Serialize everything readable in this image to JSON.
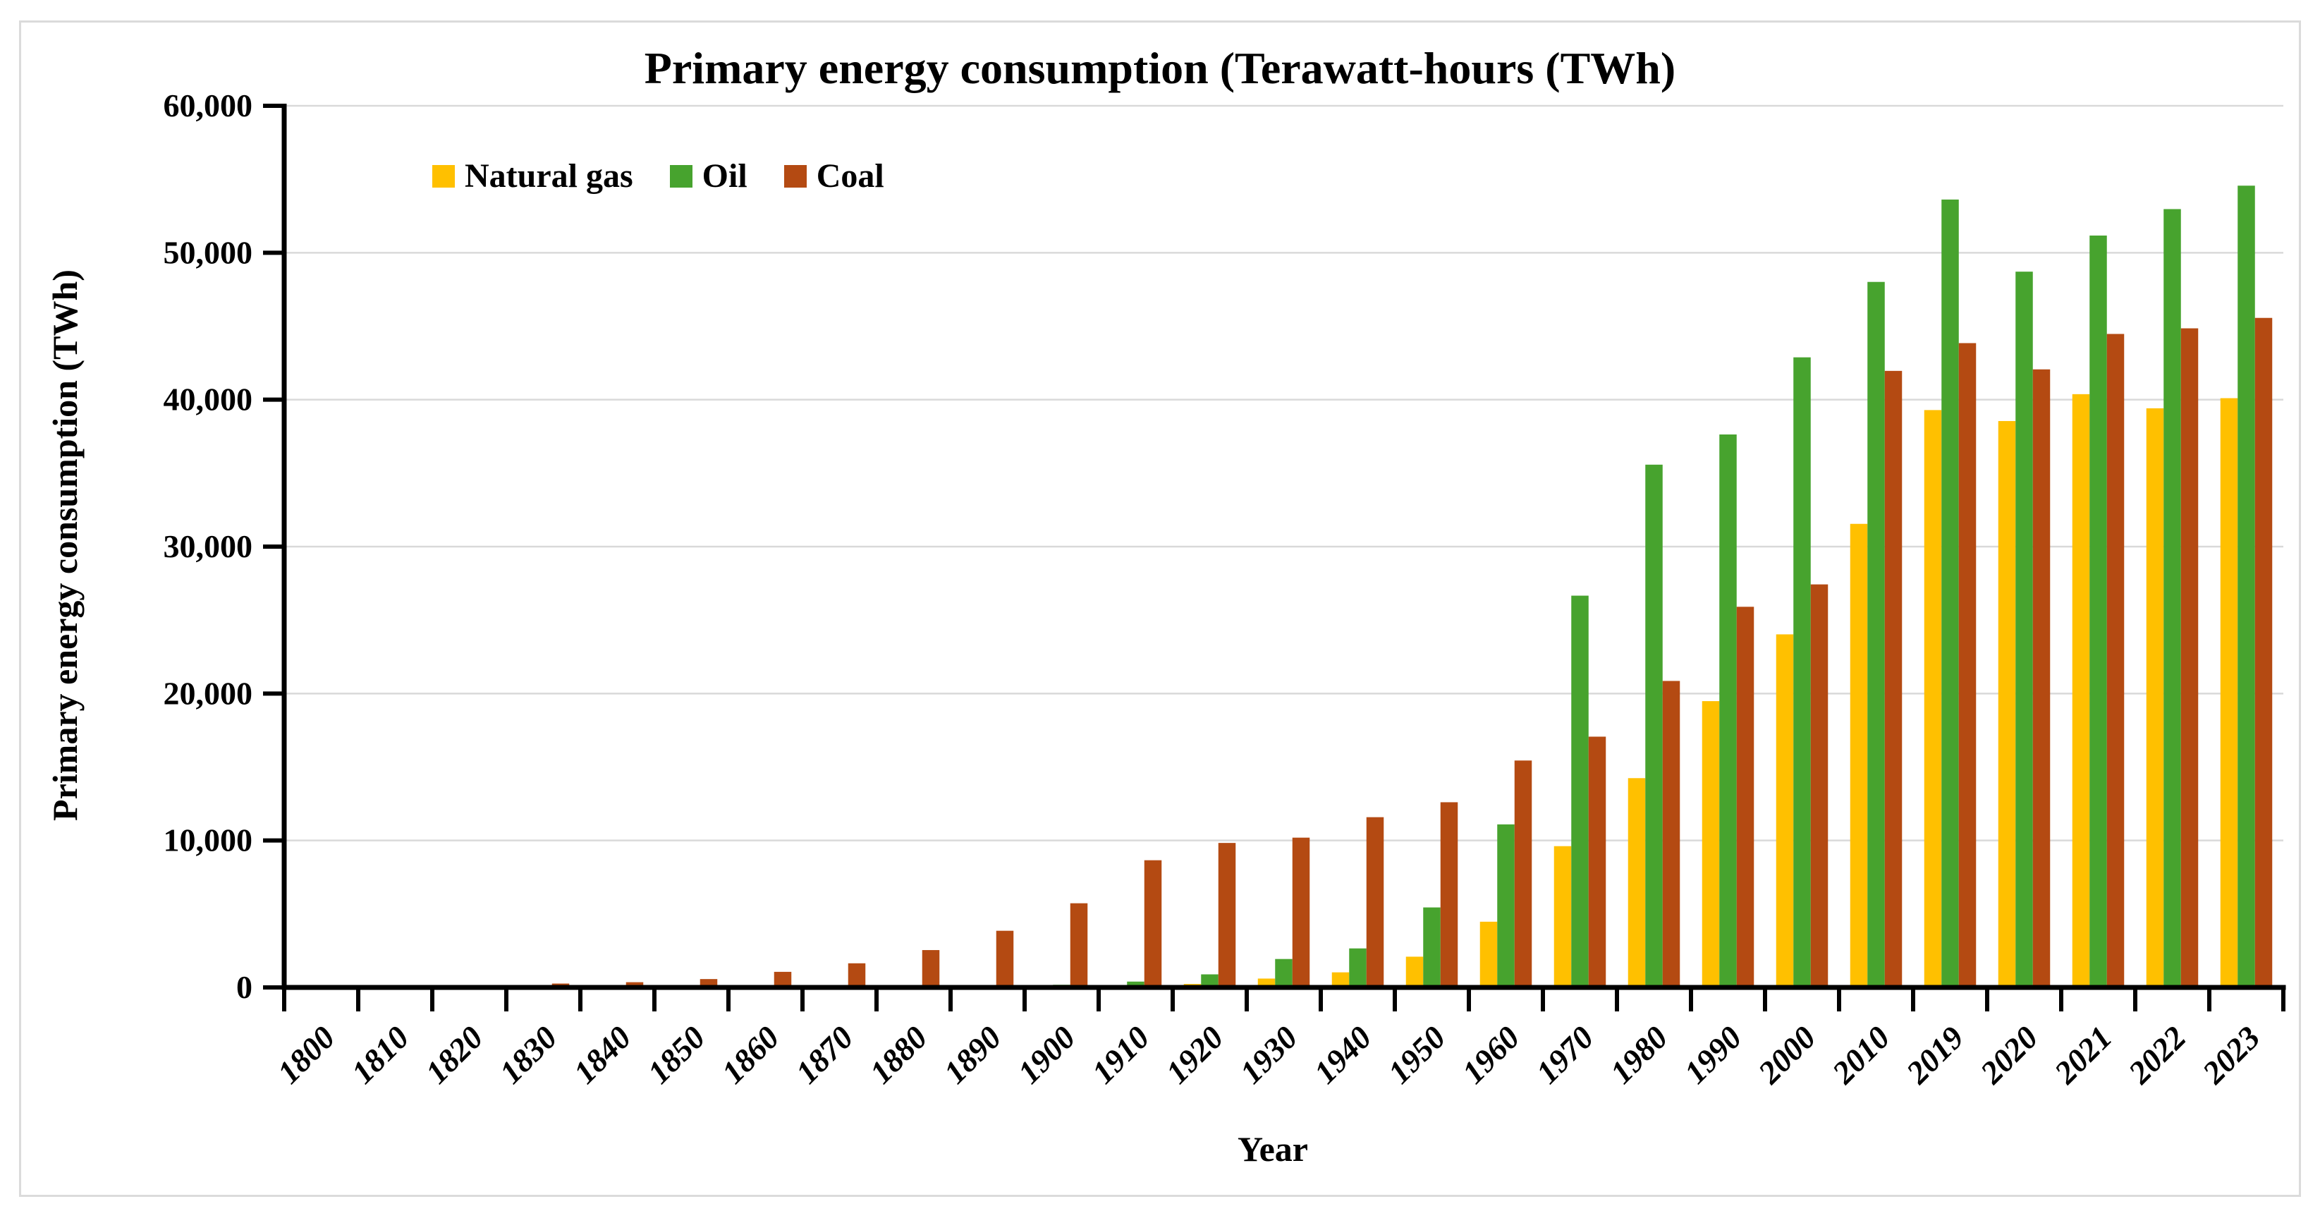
{
  "chart_data": {
    "type": "bar",
    "title": "Primary energy consumption (Terawatt-hours (TWh)",
    "xlabel": "Year",
    "ylabel": "Primary energy consumption (TWh)",
    "categories": [
      "1800",
      "1810",
      "1820",
      "1830",
      "1840",
      "1850",
      "1860",
      "1870",
      "1880",
      "1890",
      "1900",
      "1910",
      "1920",
      "1930",
      "1940",
      "1950",
      "1960",
      "1970",
      "1980",
      "1990",
      "2000",
      "2010",
      "2019",
      "2020",
      "2021",
      "2022",
      "2023"
    ],
    "series": [
      {
        "name": "Natural gas",
        "color": "#FFC000",
        "values": [
          0,
          0,
          0,
          0,
          0,
          0,
          0,
          0,
          0,
          31,
          64,
          141,
          234,
          603,
          1026,
          2092,
          4472,
          9614,
          14243,
          19484,
          24028,
          31549,
          39292,
          38546,
          40375,
          39413,
          40102
        ]
      },
      {
        "name": "Oil",
        "color": "#47A32E",
        "values": [
          0,
          0,
          0,
          0,
          0,
          0,
          0,
          9,
          33,
          89,
          181,
          397,
          889,
          1935,
          2655,
          5444,
          11096,
          26662,
          35577,
          37632,
          42881,
          48014,
          53620,
          48712,
          51170,
          52970,
          54564
        ]
      },
      {
        "name": "Coal",
        "color": "#B44A12",
        "values": [
          97,
          128,
          153,
          264,
          356,
          569,
          1061,
          1642,
          2542,
          3856,
          5728,
          8656,
          9833,
          10193,
          11586,
          12603,
          15442,
          17066,
          20858,
          25905,
          27428,
          41959,
          43849,
          42062,
          44473,
          44855,
          45565
        ]
      }
    ],
    "ylim": [
      0,
      60000
    ],
    "ytick_step": 10000,
    "ytick_labels": [
      "0",
      "10,000",
      "20,000",
      "30,000",
      "40,000",
      "50,000",
      "60,000"
    ],
    "grid": "horizontal",
    "gridline_color": "#D9D9D9",
    "axis_color": "#000000",
    "legend_position": "top-left-inside"
  }
}
